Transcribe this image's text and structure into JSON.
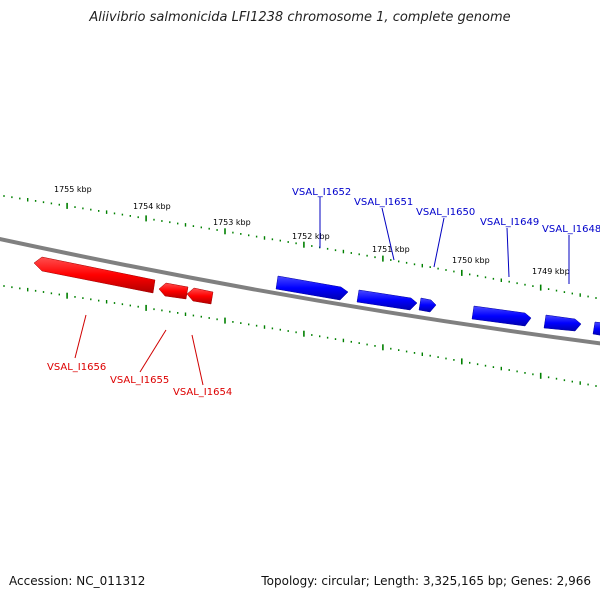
{
  "title": "Aliivibrio salmonicida LFI1238 chromosome 1, complete genome",
  "footer": {
    "accession": "Accession: NC_011312",
    "summary": "Topology: circular; Length: 3,325,165 bp; Genes: 2,966"
  },
  "colors": {
    "forward": "#0000ff",
    "reverse": "#ff0000",
    "backbone": "#808080",
    "ticks": "#008000"
  },
  "scale_labels": [
    "1755 kbp",
    "1754 kbp",
    "1753 kbp",
    "1752 kbp",
    "1751 kbp",
    "1750 kbp",
    "1749 kbp"
  ],
  "genes": {
    "forward": [
      "VSAL_I1652",
      "VSAL_I1651",
      "VSAL_I1650",
      "VSAL_I1649",
      "VSAL_I1648"
    ],
    "reverse": [
      "VSAL_I1656",
      "VSAL_I1655",
      "VSAL_I1654"
    ]
  }
}
